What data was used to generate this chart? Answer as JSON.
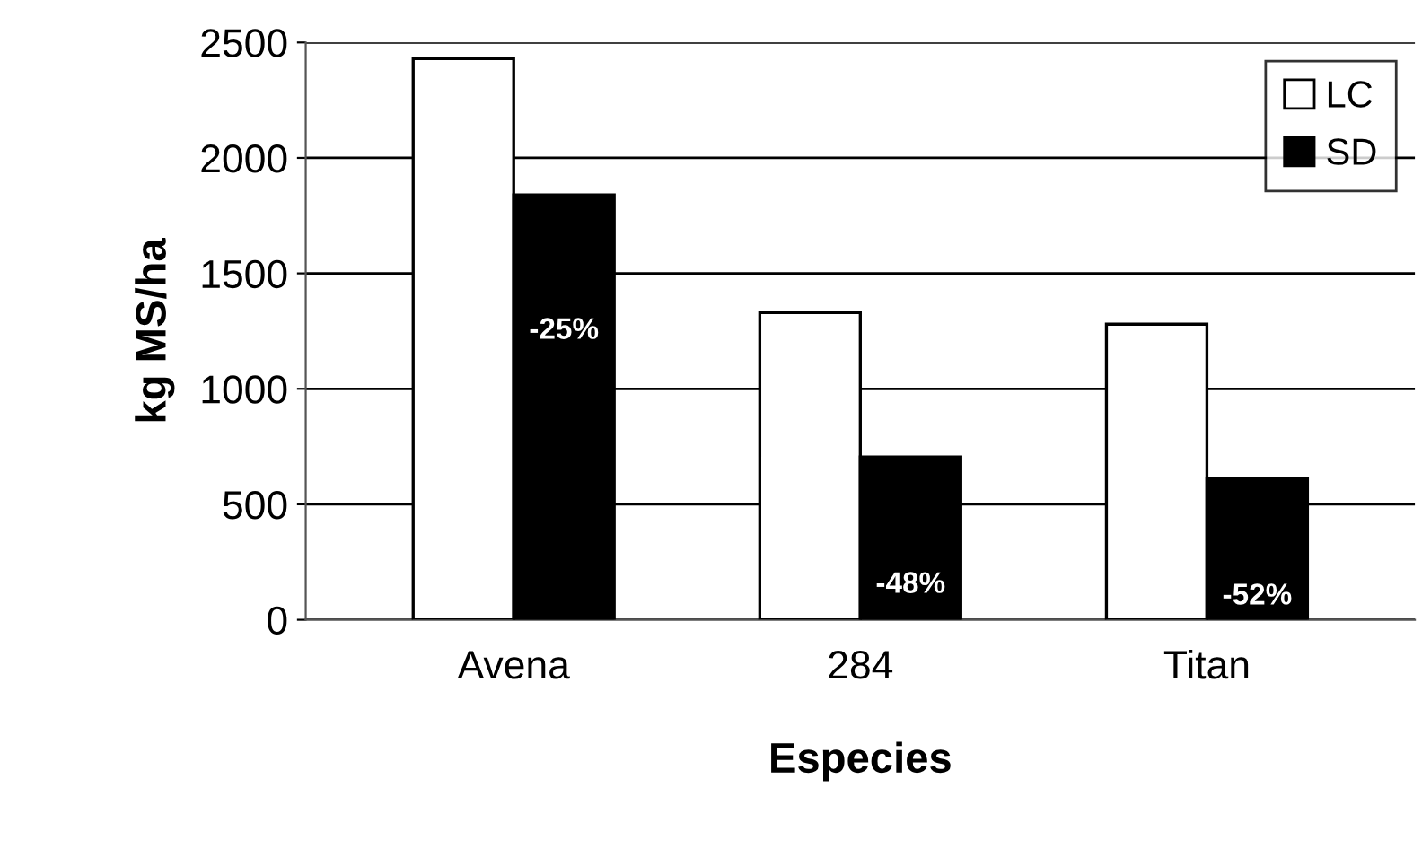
{
  "chart_data": {
    "type": "bar",
    "xlabel": "Especies",
    "ylabel": "kg MS/ha",
    "categories": [
      "Avena",
      "284",
      "Titan"
    ],
    "series": [
      {
        "name": "LC",
        "color": "#ffffff",
        "values": [
          2430,
          1330,
          1280
        ]
      },
      {
        "name": "SD",
        "color": "#000000",
        "values": [
          1840,
          705,
          610
        ]
      }
    ],
    "ylim": [
      0,
      2500
    ],
    "yticks": [
      0,
      500,
      1000,
      1500,
      2000,
      2500
    ],
    "grid": "y",
    "legend": "top right",
    "annotations": [
      {
        "text": "-25%",
        "x": "Avena",
        "y": 1250
      },
      {
        "text": "-48%",
        "x": "284",
        "y": 150
      },
      {
        "text": "-52%",
        "x": "Titan",
        "y": 100
      }
    ]
  }
}
